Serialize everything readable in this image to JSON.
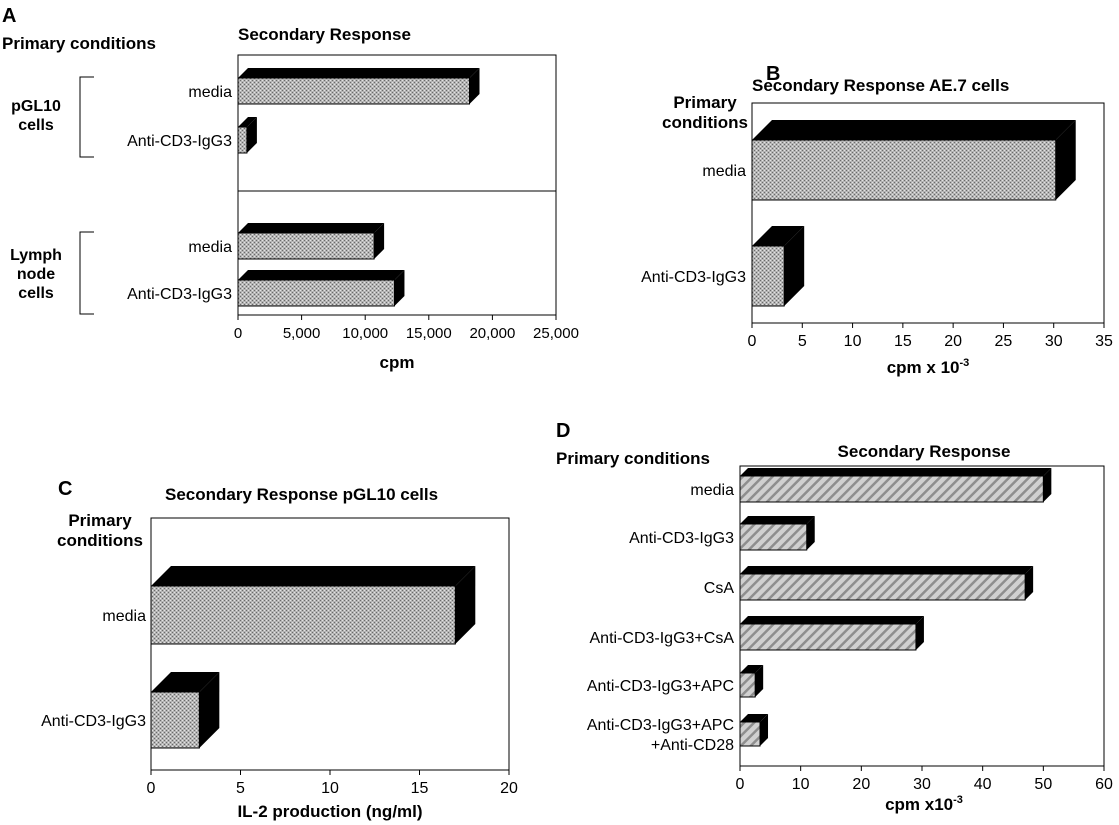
{
  "panels": [
    {
      "id": "A",
      "letter": "A",
      "left_header": "Primary conditions",
      "chart_title": "Secondary Response",
      "xlabel": "cpm",
      "xlabel_sup": "",
      "groups": [
        {
          "label_lines": [
            "pGL10",
            "cells"
          ]
        },
        {
          "label_lines": [
            "Lymph",
            "node",
            "cells"
          ]
        }
      ]
    },
    {
      "id": "B",
      "letter": "B",
      "left_header_lines": [
        "Primary",
        "conditions"
      ],
      "chart_title": "Secondary Response AE.7 cells",
      "xlabel": "cpm x 10",
      "xlabel_sup": "-3"
    },
    {
      "id": "C",
      "letter": "C",
      "left_header_lines": [
        "Primary",
        "conditions"
      ],
      "chart_title": "Secondary Response pGL10 cells",
      "xlabel": "IL-2 production (ng/ml)",
      "xlabel_sup": ""
    },
    {
      "id": "D",
      "letter": "D",
      "left_header": "Primary conditions",
      "chart_title": "Secondary Response",
      "xlabel": "cpm x10",
      "xlabel_sup": "-3"
    }
  ],
  "chart_data": [
    {
      "type": "bar",
      "orientation": "horizontal",
      "title": "Secondary Response",
      "xlabel": "cpm",
      "xlim": [
        0,
        25000
      ],
      "xticks": [
        0,
        5000,
        10000,
        15000,
        20000,
        25000
      ],
      "xtick_labels": [
        "0",
        "5,000",
        "10,000",
        "15,000",
        "20,000",
        "25,000"
      ],
      "categories": [
        "media",
        "Anti-CD3-IgG3",
        "media",
        "Anti-CD3-IgG3"
      ],
      "category_groups": [
        "pGL10 cells",
        "pGL10 cells",
        "Lymph node cells",
        "Lymph node cells"
      ],
      "values": [
        18200,
        700,
        10700,
        12300
      ],
      "fill": "stipple"
    },
    {
      "type": "bar",
      "orientation": "horizontal",
      "title": "Secondary Response AE.7 cells",
      "xlabel": "cpm x 10-3",
      "xlim": [
        0,
        35
      ],
      "xticks": [
        0,
        5,
        10,
        15,
        20,
        25,
        30,
        35
      ],
      "xtick_labels": [
        "0",
        "5",
        "10",
        "15",
        "20",
        "25",
        "30",
        "35"
      ],
      "categories": [
        "media",
        "Anti-CD3-IgG3"
      ],
      "values": [
        30.2,
        3.2
      ],
      "fill": "stipple"
    },
    {
      "type": "bar",
      "orientation": "horizontal",
      "title": "Secondary Response pGL10 cells",
      "xlabel": "IL-2 production (ng/ml)",
      "xlim": [
        0,
        20
      ],
      "xticks": [
        0,
        5,
        10,
        15,
        20
      ],
      "xtick_labels": [
        "0",
        "5",
        "10",
        "15",
        "20"
      ],
      "categories": [
        "media",
        "Anti-CD3-IgG3"
      ],
      "values": [
        17.0,
        2.7
      ],
      "fill": "stipple"
    },
    {
      "type": "bar",
      "orientation": "horizontal",
      "title": "Secondary Response",
      "xlabel": "cpm x10-3",
      "xlim": [
        0,
        60
      ],
      "xticks": [
        0,
        10,
        20,
        30,
        40,
        50,
        60
      ],
      "xtick_labels": [
        "0",
        "10",
        "20",
        "30",
        "40",
        "50",
        "60"
      ],
      "categories": [
        "media",
        "Anti-CD3-IgG3",
        "CsA",
        "Anti-CD3-IgG3+CsA",
        "Anti-CD3-IgG3+APC",
        "Anti-CD3-IgG3+APC\n+Anti-CD28"
      ],
      "values": [
        50.0,
        11.0,
        47.0,
        29.0,
        2.5,
        3.3
      ],
      "fill": "hatched"
    }
  ]
}
